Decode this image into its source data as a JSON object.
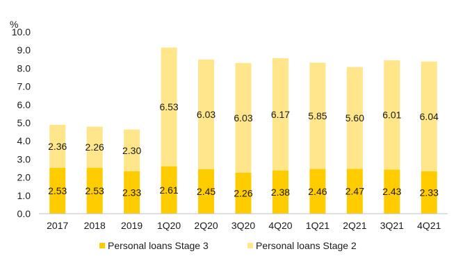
{
  "chart_data": {
    "type": "bar",
    "stacked": true,
    "y_unit_label": "%",
    "categories": [
      "2017",
      "2018",
      "2019",
      "1Q20",
      "2Q20",
      "3Q20",
      "4Q20",
      "1Q21",
      "2Q21",
      "3Q21",
      "4Q21"
    ],
    "series": [
      {
        "name": "Personal loans Stage 3",
        "color": "#FFCC00",
        "values": [
          2.53,
          2.53,
          2.33,
          2.61,
          2.45,
          2.26,
          2.38,
          2.46,
          2.47,
          2.43,
          2.33
        ],
        "labels": [
          "2.53",
          "2.53",
          "2.33",
          "2.61",
          "2.45",
          "2.26",
          "2.38",
          "2.46",
          "2.47",
          "2.43",
          "2.33"
        ]
      },
      {
        "name": "Personal loans Stage 2",
        "color": "#FFE68A",
        "values": [
          2.36,
          2.26,
          2.3,
          6.53,
          6.03,
          6.03,
          6.17,
          5.85,
          5.6,
          6.01,
          6.04
        ],
        "labels": [
          "2.36",
          "2.26",
          "2.30",
          "6.53",
          "6.03",
          "6.03",
          "6.17",
          "5.85",
          "5.60",
          "6.01",
          "6.04"
        ]
      }
    ],
    "ylim": [
      0,
      10
    ],
    "y_ticks": [
      "0.0",
      "1.0",
      "2.0",
      "3.0",
      "4.0",
      "5.0",
      "6.0",
      "7.0",
      "8.0",
      "9.0",
      "10.0"
    ],
    "grid": false,
    "legend_position": "bottom"
  }
}
